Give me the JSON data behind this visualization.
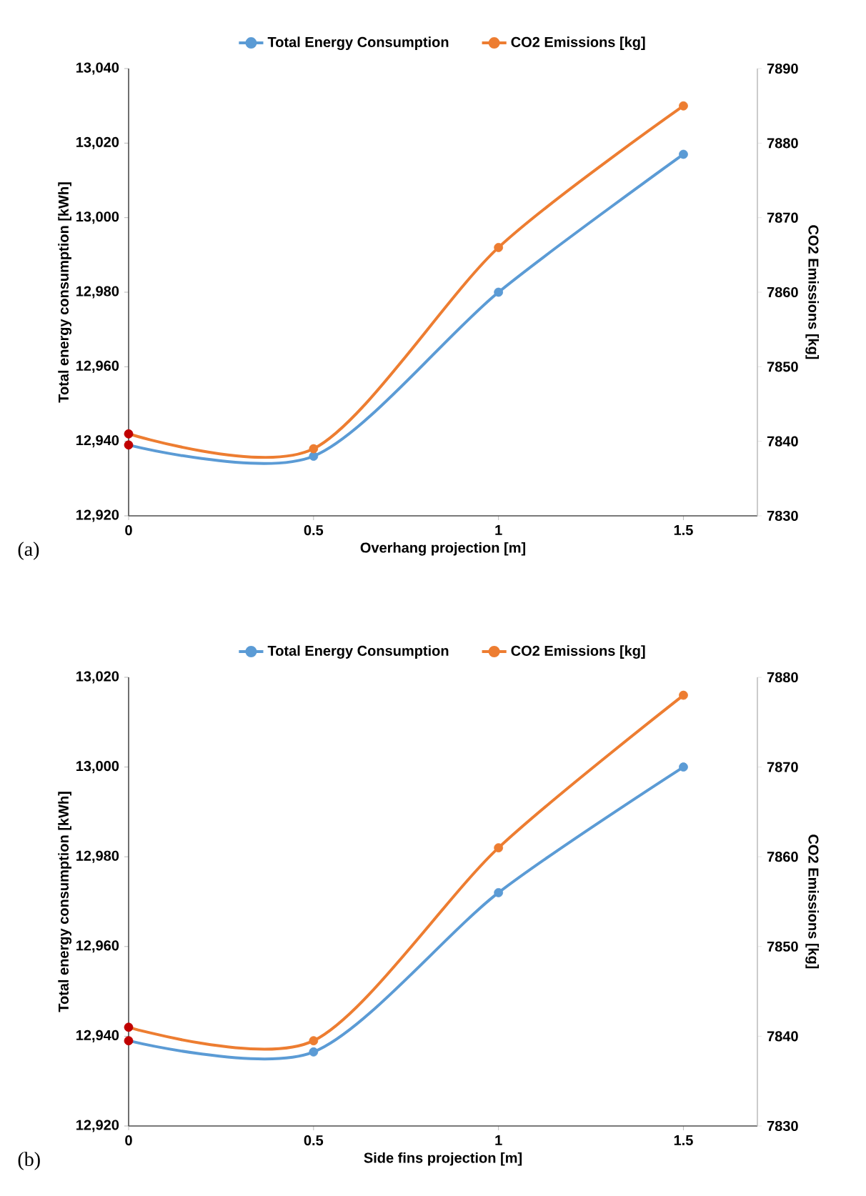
{
  "chart_data": [
    {
      "type": "line",
      "xlabel": "Overhang projection [m]",
      "ylabel": "Total energy consumption [kWh]",
      "y2label": "CO2 Emissions [kg]",
      "annotations": [
        "(a)"
      ],
      "x": [
        0,
        0.5,
        1,
        1.5
      ],
      "series": [
        {
          "name": "Total Energy Consumption",
          "color": "#5b9bd5",
          "colors": [
            "#c00000",
            "#5b9bd5",
            "#5b9bd5",
            "#5b9bd5"
          ],
          "values": [
            12939,
            12936,
            12980,
            13017
          ]
        },
        {
          "name": "CO2 Emissions [kg]",
          "color": "#ed7d31",
          "colors": [
            "#c00000",
            "#ed7d31",
            "#ed7d31",
            "#ed7d31"
          ],
          "axis": "y2",
          "values": [
            7841,
            7839,
            7866,
            7885
          ]
        }
      ],
      "xlim": [
        0,
        1.7
      ],
      "xticks": [
        0,
        0.5,
        1,
        1.5
      ],
      "ylim": [
        12920,
        13040
      ],
      "yticks": [
        {
          "value": 12920,
          "label": "12,920"
        },
        {
          "value": 12940,
          "label": "12,940"
        },
        {
          "value": 12960,
          "label": "12,960"
        },
        {
          "value": 12980,
          "label": "12,980"
        },
        {
          "value": 13000,
          "label": "13,000"
        },
        {
          "value": 13020,
          "label": "13,020"
        },
        {
          "value": 13040,
          "label": "13,040"
        }
      ],
      "y2lim": [
        7830,
        7890
      ],
      "y2ticks": [
        7830,
        7840,
        7850,
        7860,
        7870,
        7880,
        7890
      ],
      "legend": "top",
      "marker": "circle",
      "line_style": "solid"
    },
    {
      "type": "line",
      "xlabel": "Side fins projection [m]",
      "ylabel": "Total energy consumption [kWh]",
      "y2label": "CO2 Emissions [kg]",
      "annotations": [
        "(b)"
      ],
      "x": [
        0,
        0.5,
        1,
        1.5
      ],
      "series": [
        {
          "name": "Total Energy Consumption",
          "color": "#5b9bd5",
          "colors": [
            "#c00000",
            "#5b9bd5",
            "#5b9bd5",
            "#5b9bd5"
          ],
          "values": [
            12939,
            12936.5,
            12972,
            13000
          ]
        },
        {
          "name": "CO2 Emissions [kg]",
          "color": "#ed7d31",
          "colors": [
            "#c00000",
            "#ed7d31",
            "#ed7d31",
            "#ed7d31"
          ],
          "axis": "y2",
          "values": [
            7841,
            7839.5,
            7861,
            7878
          ]
        }
      ],
      "xlim": [
        0,
        1.7
      ],
      "xticks": [
        0,
        0.5,
        1,
        1.5
      ],
      "ylim": [
        12920,
        13020
      ],
      "yticks": [
        {
          "value": 12920,
          "label": "12,920"
        },
        {
          "value": 12940,
          "label": "12,940"
        },
        {
          "value": 12960,
          "label": "12,960"
        },
        {
          "value": 12980,
          "label": "12,980"
        },
        {
          "value": 13000,
          "label": "13,000"
        },
        {
          "value": 13020,
          "label": "13,020"
        }
      ],
      "y2lim": [
        7830,
        7880
      ],
      "y2ticks": [
        7830,
        7840,
        7850,
        7860,
        7870,
        7880
      ],
      "legend": "top",
      "marker": "circle",
      "line_style": "solid"
    }
  ]
}
